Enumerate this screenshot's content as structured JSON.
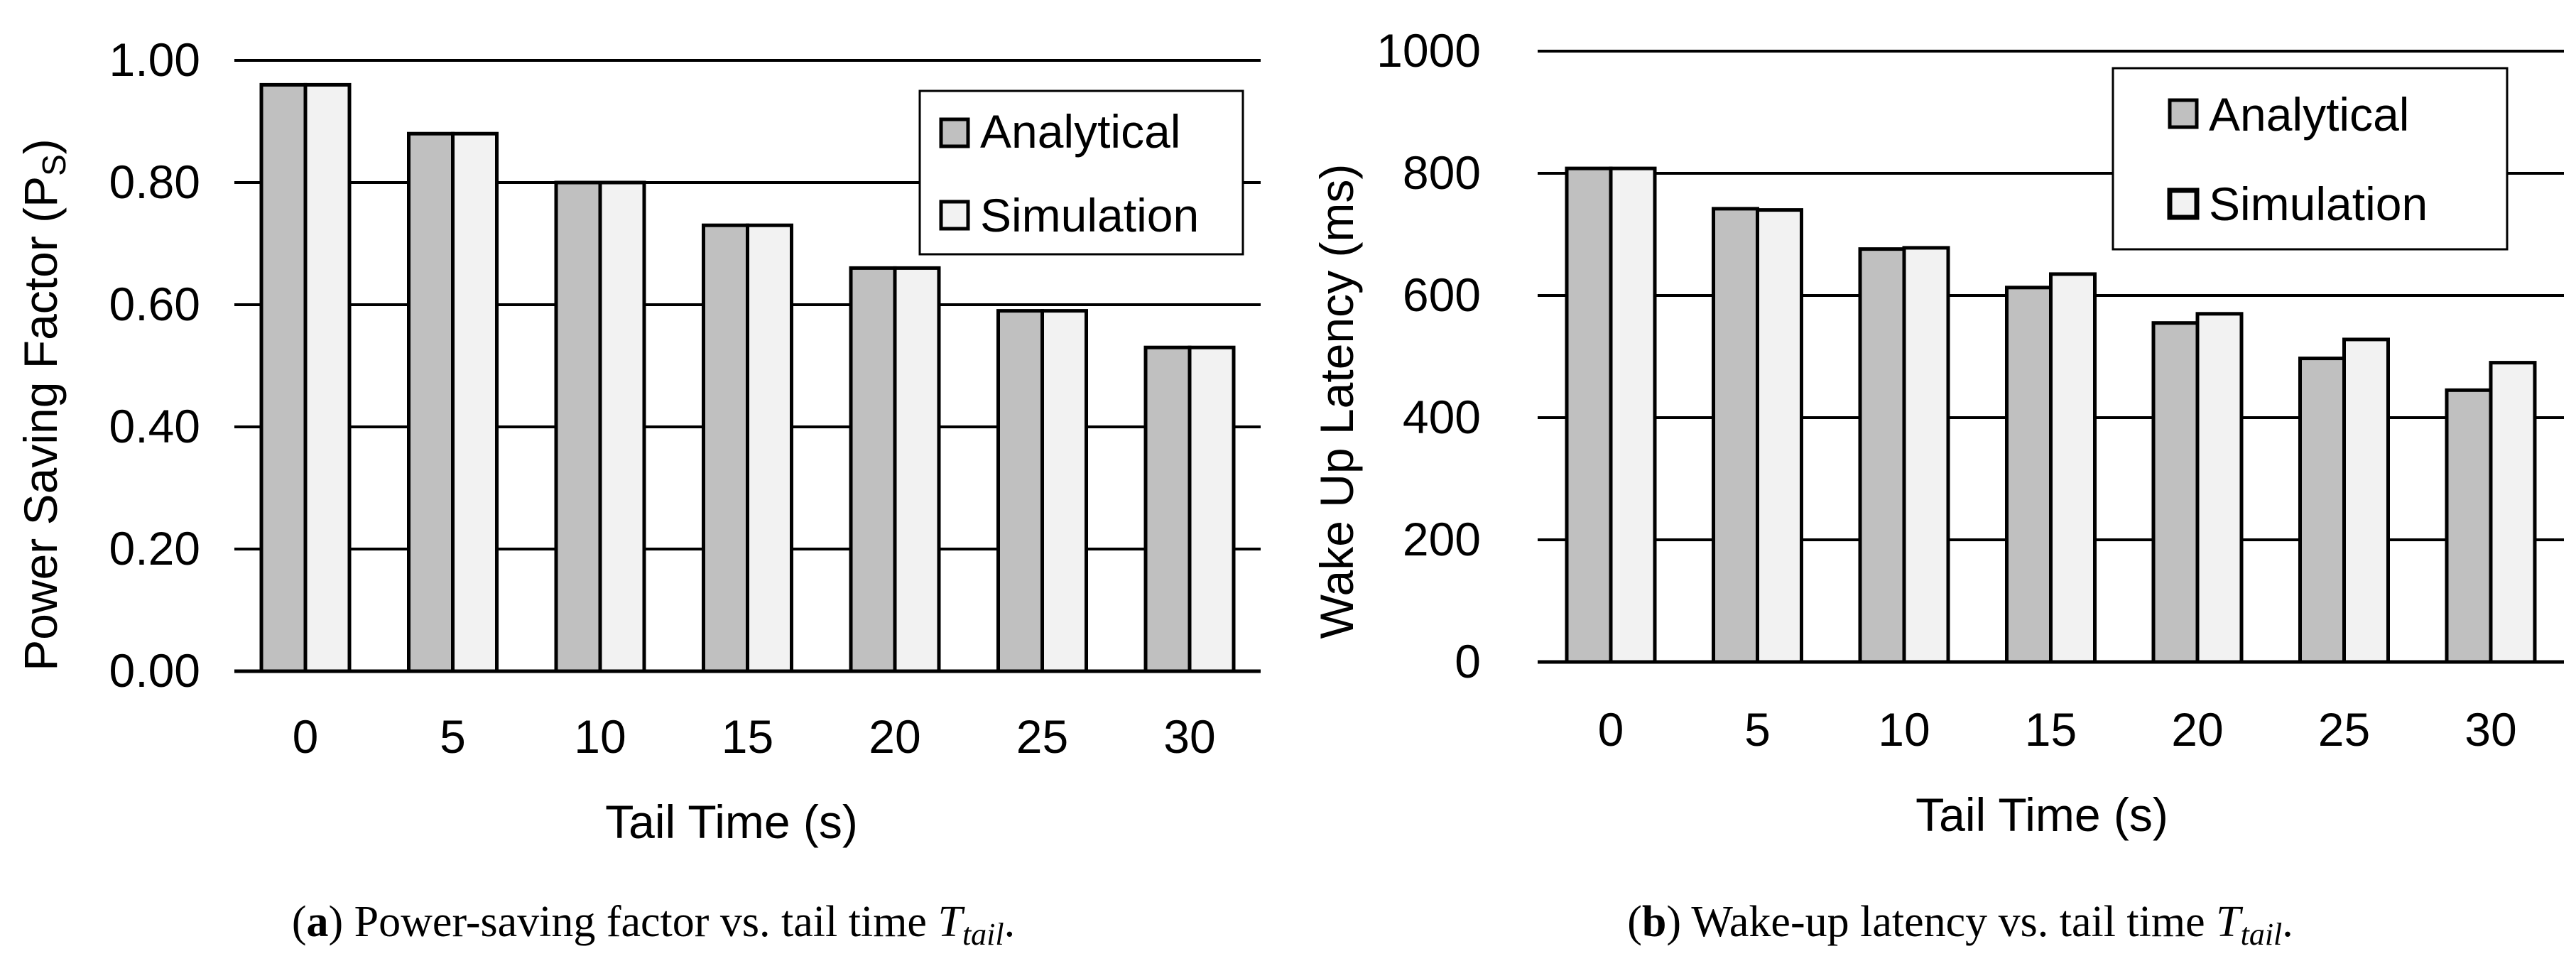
{
  "chart_data": [
    {
      "type": "bar",
      "id": "a",
      "title": "",
      "xlabel": "Tail Time (s)",
      "ylabel_main": "Power Saving Factor (P",
      "ylabel_sub": "S",
      "ylabel_close": ")",
      "categories": [
        "0",
        "5",
        "10",
        "15",
        "20",
        "25",
        "30"
      ],
      "ylim": [
        0,
        1
      ],
      "yticks": [
        0,
        0.2,
        0.4,
        0.6,
        0.8,
        1.0
      ],
      "ytick_labels": [
        "0.00",
        "0.20",
        "0.40",
        "0.60",
        "0.80",
        "1.00"
      ],
      "grid": true,
      "legend_position": "top-right",
      "series": [
        {
          "name": "Analytical",
          "color": "#c0c0c0",
          "values": [
            0.96,
            0.88,
            0.8,
            0.73,
            0.66,
            0.59,
            0.53
          ]
        },
        {
          "name": "Simulation",
          "color": "#f2f2f2",
          "values": [
            0.96,
            0.88,
            0.8,
            0.73,
            0.66,
            0.59,
            0.53
          ]
        }
      ],
      "caption": {
        "label": "a",
        "text": "Power-saving factor vs. tail time ",
        "sym": "T",
        "sub": "tail",
        "end": "."
      }
    },
    {
      "type": "bar",
      "id": "b",
      "title": "",
      "xlabel": "Tail Time (s)",
      "ylabel_main": "Wake Up Latency (ms)",
      "ylabel_sub": "",
      "ylabel_close": "",
      "categories": [
        "0",
        "5",
        "10",
        "15",
        "20",
        "25",
        "30"
      ],
      "ylim": [
        0,
        1000
      ],
      "yticks": [
        0,
        200,
        400,
        600,
        800,
        1000
      ],
      "ytick_labels": [
        "0",
        "200",
        "400",
        "600",
        "800",
        "1000"
      ],
      "grid": true,
      "legend_position": "top-right",
      "series": [
        {
          "name": "Analytical",
          "color": "#c0c0c0",
          "values": [
            808,
            742,
            676,
            613,
            555,
            497,
            445
          ]
        },
        {
          "name": "Simulation",
          "color": "#f2f2f2",
          "values": [
            808,
            740,
            678,
            635,
            570,
            528,
            490
          ]
        }
      ],
      "caption": {
        "label": "b",
        "text": "Wake-up latency vs. tail time ",
        "sym": "T",
        "sub": "tail",
        "end": "."
      }
    }
  ]
}
